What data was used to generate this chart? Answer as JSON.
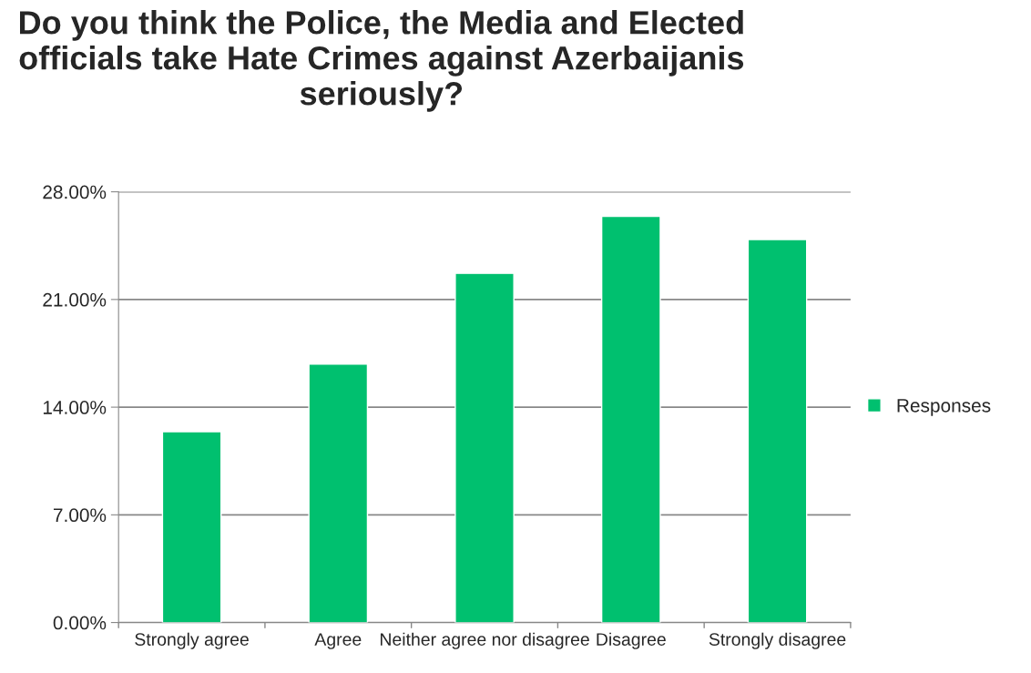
{
  "chart_data": {
    "type": "bar",
    "title": "Do you think the Police, the Media and Elected officials take Hate Crimes against Azerbaijanis seriously?",
    "categories": [
      "Strongly agree",
      "Agree",
      "Neither agree nor disagree",
      "Disagree",
      "Strongly disagree"
    ],
    "series": [
      {
        "name": "Responses",
        "color": "#00c06f",
        "values": [
          12.4,
          16.8,
          22.7,
          26.4,
          24.9
        ]
      }
    ],
    "ylim": [
      0,
      28
    ],
    "yticks": [
      {
        "value": 0,
        "label": "0.00%"
      },
      {
        "value": 7,
        "label": "7.00%"
      },
      {
        "value": 14,
        "label": "14.00%"
      },
      {
        "value": 21,
        "label": "21.00%"
      },
      {
        "value": 28,
        "label": "28.00%"
      }
    ],
    "grid": "y",
    "legend": "right"
  }
}
